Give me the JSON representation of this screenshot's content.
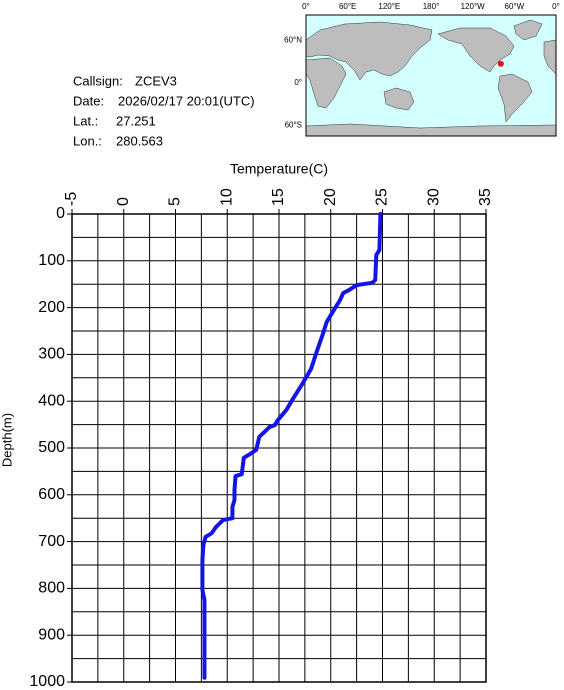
{
  "station": {
    "callsign_label": "Callsign:",
    "callsign": "ZCEV3",
    "date_label": "Date:",
    "date": "2026/02/17 20:01(UTC)",
    "lat_label": "Lat.:",
    "lat": 27.251,
    "lon_label": "Lon.:",
    "lon": 280.563
  },
  "map": {
    "lon_labels": [
      "0°",
      "60°E",
      "120°E",
      "180°",
      "120°W",
      "60°W",
      "0°"
    ],
    "lat_labels": [
      "60°N",
      "0°",
      "60°S"
    ],
    "marker_color": "#ff0000"
  },
  "chart_data": {
    "type": "line",
    "x_label": "Temperature(C)",
    "y_label": "Depth(m)",
    "xlim": [
      -5,
      35
    ],
    "xticks": [
      -5,
      0,
      5,
      10,
      15,
      20,
      25,
      30,
      35
    ],
    "ylim": [
      0,
      1000
    ],
    "yticks": [
      0,
      100,
      200,
      300,
      400,
      500,
      600,
      700,
      800,
      900,
      1000
    ],
    "y_inverted": true,
    "grid": true,
    "x_grid": [
      -2.5,
      0,
      2.5,
      5,
      7.5,
      10,
      12.5,
      15,
      17.5,
      20,
      22.5,
      25,
      27.5,
      30,
      32.5
    ],
    "y_grid": [
      50,
      100,
      150,
      200,
      250,
      300,
      350,
      400,
      450,
      500,
      550,
      600,
      650,
      700,
      750,
      800,
      850,
      900,
      950
    ],
    "series": [
      {
        "color": "#1414e6",
        "values": [
          24.8,
          24.7,
          24.4,
          24.3,
          24.0,
          22.5,
          21.8,
          21.2,
          20.9,
          20.2,
          19.6,
          19.2,
          18.6,
          18.1,
          17.2,
          16.4,
          15.7,
          14.9,
          14.6,
          14.1,
          13.1,
          12.8,
          12.2,
          11.6,
          11.4,
          10.8,
          10.7,
          10.7,
          10.5,
          10.5,
          9.6,
          8.9,
          8.5,
          7.9,
          7.7,
          7.6,
          7.6,
          7.8,
          7.8
        ],
        "depths": [
          0,
          77,
          88,
          141,
          147,
          152,
          162,
          169,
          184,
          209,
          231,
          259,
          297,
          331,
          365,
          393,
          419,
          440,
          451,
          455,
          476,
          504,
          513,
          521,
          556,
          560,
          590,
          611,
          626,
          650,
          654,
          669,
          682,
          690,
          707,
          739,
          803,
          825,
          991
        ]
      }
    ]
  }
}
